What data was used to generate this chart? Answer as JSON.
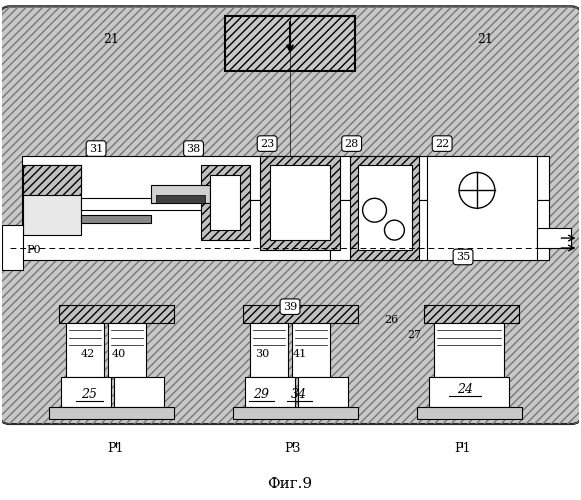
{
  "title": "Фиг.9",
  "labels": {
    "21_left": "21",
    "21_right": "21",
    "31": "31",
    "38": "38",
    "23": "23",
    "28": "28",
    "22": "22",
    "P0": "P0",
    "35": "35",
    "39": "39",
    "42": "42",
    "40": "40",
    "25": "25",
    "30": "30",
    "41": "41",
    "29": "29",
    "34": "34",
    "26": "26",
    "27": "27",
    "24": "24",
    "P1_left": "P1",
    "P3": "P3",
    "P1_right": "P1"
  },
  "bg_color": "#ffffff",
  "hatch_color": "#555555",
  "line_color": "#000000"
}
